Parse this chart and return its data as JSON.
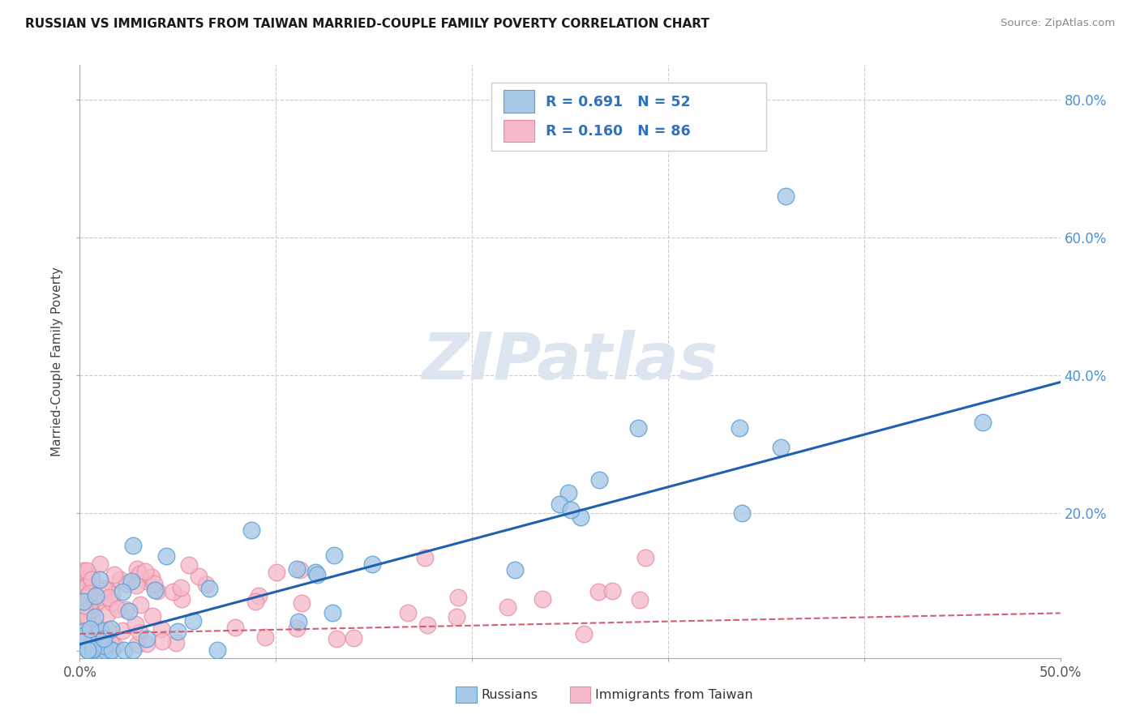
{
  "title": "RUSSIAN VS IMMIGRANTS FROM TAIWAN MARRIED-COUPLE FAMILY POVERTY CORRELATION CHART",
  "source": "Source: ZipAtlas.com",
  "ylabel": "Married-Couple Family Poverty",
  "xlabel": "",
  "xlim": [
    0.0,
    0.5
  ],
  "ylim": [
    -0.01,
    0.85
  ],
  "ytick_vals": [
    0.2,
    0.4,
    0.6,
    0.8
  ],
  "ytick_labels": [
    "20.0%",
    "40.0%",
    "60.0%",
    "80.0%"
  ],
  "xtick_vals": [
    0.0,
    0.1,
    0.2,
    0.3,
    0.4,
    0.5
  ],
  "xtick_labels": [
    "0.0%",
    "",
    "",
    "",
    "",
    "50.0%"
  ],
  "legend1_label": "R = 0.691   N = 52",
  "legend2_label": "R = 0.160   N = 86",
  "legend_bottom_label1": "Russians",
  "legend_bottom_label2": "Immigrants from Taiwan",
  "blue_fill": "#a8c8e8",
  "blue_edge": "#5a9fd4",
  "pink_fill": "#f5b8c8",
  "pink_edge": "#e88aa0",
  "blue_line_color": "#2060b0",
  "pink_line_color": "#d06070",
  "watermark_color": "#dde5f0",
  "background_color": "#ffffff",
  "grid_color": "#cccccc",
  "blue_legend_fill": "#a8c8e8",
  "pink_legend_fill": "#f5b8c8",
  "legend_text_color": "#3070c0",
  "rus_slope": 0.76,
  "rus_intercept": 0.01,
  "tai_slope": 0.06,
  "tai_intercept": 0.025
}
